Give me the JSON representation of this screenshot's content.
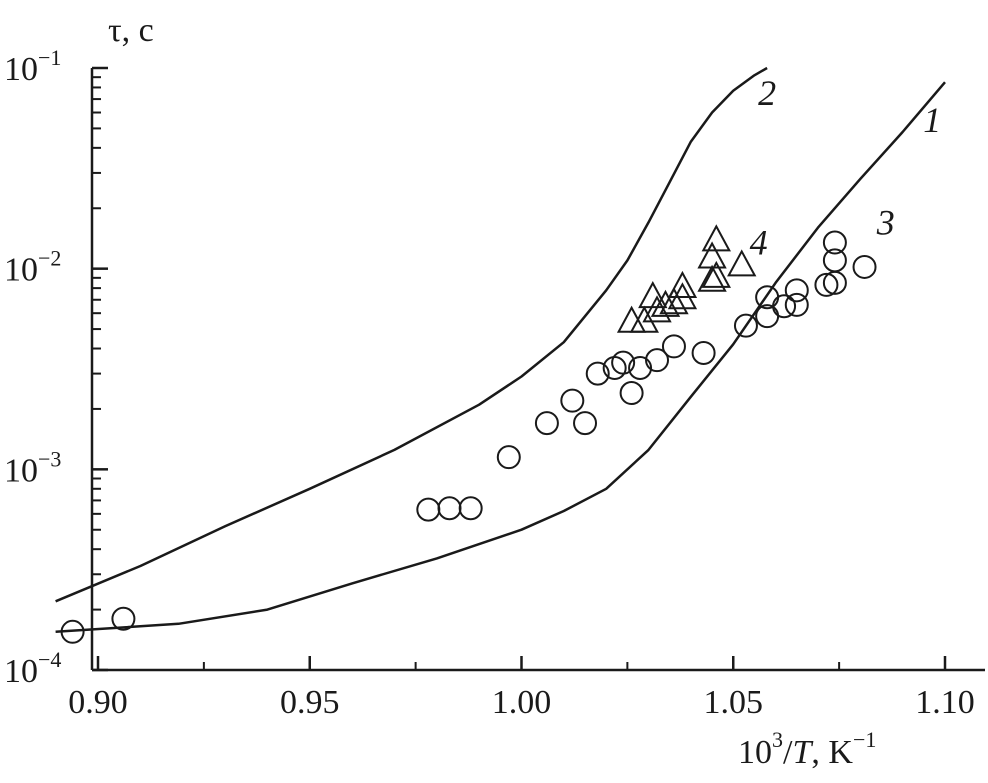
{
  "chart_data": {
    "type": "line",
    "y_scale": "log",
    "xlim": [
      0.89,
      1.1
    ],
    "ylim": [
      0.0001,
      0.1
    ],
    "ylabel": "τ, с",
    "xlabel": {
      "base": "10",
      "exp": "3",
      "rest": "/",
      "var": "T",
      "unit": ", K",
      "unit_exp": "−1"
    },
    "x_ticks": [
      {
        "value": 0.9,
        "label": "0.90"
      },
      {
        "value": 0.95,
        "label": "0.95"
      },
      {
        "value": 1.0,
        "label": "1.00"
      },
      {
        "value": 1.05,
        "label": "1.05"
      },
      {
        "value": 1.1,
        "label": "1.10"
      }
    ],
    "y_ticks": [
      {
        "value": 0.0001,
        "base": "10",
        "exp": "−4"
      },
      {
        "value": 0.001,
        "base": "10",
        "exp": "−3"
      },
      {
        "value": 0.01,
        "base": "10",
        "exp": "−2"
      },
      {
        "value": 0.1,
        "base": "10",
        "exp": "−1"
      }
    ],
    "series": [
      {
        "name": "1",
        "kind": "line",
        "label_at": [
          1.097,
          0.055
        ],
        "x": [
          0.89,
          0.919,
          0.94,
          0.96,
          0.98,
          1.0,
          1.01,
          1.02,
          1.03,
          1.04,
          1.05,
          1.06,
          1.07,
          1.08,
          1.09,
          1.1
        ],
        "y": [
          0.000155,
          0.00017,
          0.0002,
          0.00027,
          0.00036,
          0.0005,
          0.00062,
          0.0008,
          0.00125,
          0.0023,
          0.0042,
          0.0085,
          0.016,
          0.028,
          0.048,
          0.085
        ]
      },
      {
        "name": "2",
        "kind": "line",
        "label_at": [
          1.058,
          0.075
        ],
        "x": [
          0.89,
          0.91,
          0.93,
          0.95,
          0.97,
          0.99,
          1.0,
          1.01,
          1.02,
          1.025,
          1.03,
          1.035,
          1.04,
          1.045,
          1.05,
          1.055,
          1.058
        ],
        "y": [
          0.00022,
          0.00033,
          0.00052,
          0.0008,
          0.00125,
          0.0021,
          0.0029,
          0.0043,
          0.0078,
          0.011,
          0.017,
          0.027,
          0.043,
          0.06,
          0.077,
          0.092,
          0.1
        ]
      },
      {
        "name": "3",
        "kind": "scatter",
        "marker": "circle",
        "label_at": [
          1.086,
          0.017
        ],
        "x": [
          0.894,
          0.906,
          0.978,
          0.983,
          0.988,
          0.997,
          1.006,
          1.012,
          1.015,
          1.018,
          1.022,
          1.024,
          1.026,
          1.028,
          1.032,
          1.036,
          1.043,
          1.053,
          1.058,
          1.058,
          1.062,
          1.065,
          1.065,
          1.072,
          1.074,
          1.074,
          1.074,
          1.081
        ],
        "y": [
          0.000155,
          0.00018,
          0.00063,
          0.00064,
          0.00064,
          0.00115,
          0.0017,
          0.0022,
          0.0017,
          0.003,
          0.0032,
          0.0034,
          0.0024,
          0.0032,
          0.0035,
          0.0041,
          0.0038,
          0.0052,
          0.0058,
          0.0072,
          0.0065,
          0.0066,
          0.0078,
          0.0083,
          0.0085,
          0.011,
          0.0135,
          0.0102
        ]
      },
      {
        "name": "4",
        "kind": "scatter",
        "marker": "triangle",
        "label_at": [
          1.056,
          0.0135
        ],
        "x": [
          1.026,
          1.029,
          1.031,
          1.032,
          1.034,
          1.036,
          1.038,
          1.038,
          1.045,
          1.045,
          1.046,
          1.046,
          1.052
        ],
        "y": [
          0.0055,
          0.0055,
          0.0073,
          0.0062,
          0.0066,
          0.0068,
          0.0072,
          0.0082,
          0.0088,
          0.0115,
          0.014,
          0.0092,
          0.0105
        ]
      }
    ]
  }
}
